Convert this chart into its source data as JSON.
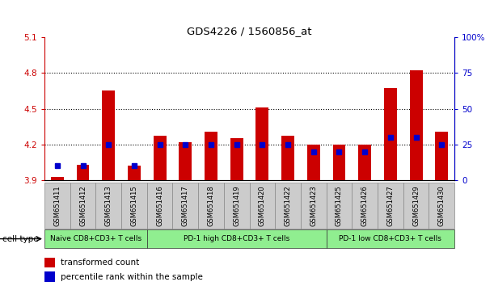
{
  "title": "GDS4226 / 1560856_at",
  "categories": [
    "GSM651411",
    "GSM651412",
    "GSM651413",
    "GSM651415",
    "GSM651416",
    "GSM651417",
    "GSM651418",
    "GSM651419",
    "GSM651420",
    "GSM651422",
    "GSM651423",
    "GSM651425",
    "GSM651426",
    "GSM651427",
    "GSM651429",
    "GSM651430"
  ],
  "transformed_count": [
    3.93,
    4.03,
    4.65,
    4.02,
    4.27,
    4.22,
    4.31,
    4.25,
    4.51,
    4.27,
    4.2,
    4.2,
    4.2,
    4.67,
    4.82,
    4.31
  ],
  "percentile_rank": [
    10,
    10,
    25,
    10,
    25,
    25,
    25,
    25,
    25,
    25,
    20,
    20,
    20,
    30,
    30,
    25
  ],
  "bar_color": "#cc0000",
  "dot_color": "#0000cc",
  "ylim_left": [
    3.9,
    5.1
  ],
  "ylim_right": [
    0,
    100
  ],
  "yticks_left": [
    3.9,
    4.2,
    4.5,
    4.8,
    5.1
  ],
  "yticks_right": [
    0,
    25,
    50,
    75,
    100
  ],
  "grid_lines": [
    4.2,
    4.5,
    4.8
  ],
  "cell_type_groups": [
    {
      "label": "Naive CD8+CD3+ T cells",
      "start": 0,
      "end": 3
    },
    {
      "label": "PD-1 high CD8+CD3+ T cells",
      "start": 4,
      "end": 10
    },
    {
      "label": "PD-1 low CD8+CD3+ T cells",
      "start": 11,
      "end": 15
    }
  ],
  "group_color": "#90ee90",
  "group_border_color": "#333333",
  "cell_type_label": "cell type",
  "legend_items": [
    {
      "label": "transformed count",
      "color": "#cc0000"
    },
    {
      "label": "percentile rank within the sample",
      "color": "#0000cc"
    }
  ],
  "background_color": "#ffffff",
  "plot_bg_color": "#ffffff",
  "bar_width": 0.5,
  "sample_box_color": "#cccccc",
  "sample_box_border": "#888888"
}
